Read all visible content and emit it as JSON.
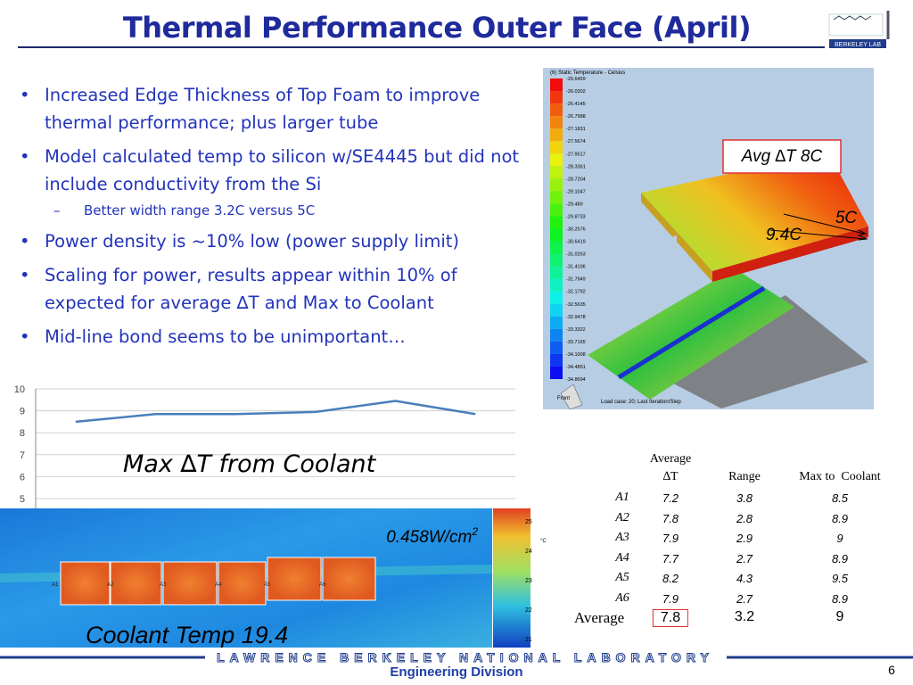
{
  "title": "Thermal Performance Outer Face (April)",
  "logo_text": "Berkeley Lab",
  "bullets": [
    {
      "text": "Increased Edge Thickness of Top Foam to improve thermal performance; plus larger tube",
      "level": 1
    },
    {
      "text": "Model calculated temp to silicon w/SE4445 but did not include conductivity from the Si",
      "level": 1
    },
    {
      "text": "Better width range 3.2C versus 5C",
      "level": 2
    },
    {
      "text": "Power density is ~10% low (power supply limit)",
      "level": 1
    },
    {
      "text": "Scaling for power, results appear within 10% of expected for average ∆T and Max to Coolant",
      "level": 1
    },
    {
      "text": "Mid-line bond seems to be unimportant…",
      "level": 1
    }
  ],
  "fea": {
    "legend_title": "(6) Static Temperature - Celsius",
    "legend_values": [
      -25.6459,
      -26.0302,
      -26.4145,
      -26.7988,
      -27.1831,
      -27.5674,
      -27.9517,
      -28.3361,
      -28.7204,
      -29.1047,
      -29.489,
      -29.8733,
      -30.2576,
      -30.6419,
      -31.0263,
      -31.4106,
      -31.7949,
      -32.1792,
      -32.5635,
      -32.9478,
      -33.3322,
      -33.7165,
      -34.1008,
      -34.4851,
      -34.8694
    ],
    "footer_text": "Load case: 20; Last Iteration/Step",
    "view_label": "Front",
    "avg_label": "Avg ∆T 8C",
    "range_labels": [
      "5C",
      "9.4C"
    ]
  },
  "chart": {
    "type": "line",
    "values": [
      8.5,
      8.85,
      8.85,
      8.95,
      9.45,
      8.85
    ],
    "ylim": [
      5,
      10
    ],
    "yticks": [
      5,
      6,
      7,
      8,
      9,
      10
    ],
    "color": "#4a7ebb",
    "grid": true,
    "label": "Max ∆T from Coolant"
  },
  "ir": {
    "power_density": "0.458W/cm",
    "power_density_exp": "2",
    "modules": [
      "A1",
      "A2",
      "A3",
      "A4",
      "A5",
      "A6"
    ],
    "colorbar_ticks": [
      25,
      24,
      23,
      22,
      21
    ],
    "unit": "°C",
    "caption": "Coolant Temp 19.4"
  },
  "table": {
    "columns": [
      "Average ∆T",
      "Range",
      "Max to  Coolant"
    ],
    "rows": [
      {
        "label": "A1",
        "values": [
          7.2,
          3.8,
          8.5
        ]
      },
      {
        "label": "A2",
        "values": [
          7.8,
          2.8,
          8.9
        ]
      },
      {
        "label": "A3",
        "values": [
          7.9,
          2.9,
          9
        ]
      },
      {
        "label": "A4",
        "values": [
          7.7,
          2.7,
          8.9
        ]
      },
      {
        "label": "A5",
        "values": [
          8.2,
          4.3,
          9.5
        ]
      },
      {
        "label": "A6",
        "values": [
          7.9,
          2.7,
          8.9
        ]
      }
    ],
    "average": {
      "label": "Average",
      "values": [
        7.8,
        3.2,
        9
      ]
    }
  },
  "footer": {
    "lab": "Lawrence Berkeley National Laboratory",
    "division": "Engineering Division",
    "page": 6
  }
}
